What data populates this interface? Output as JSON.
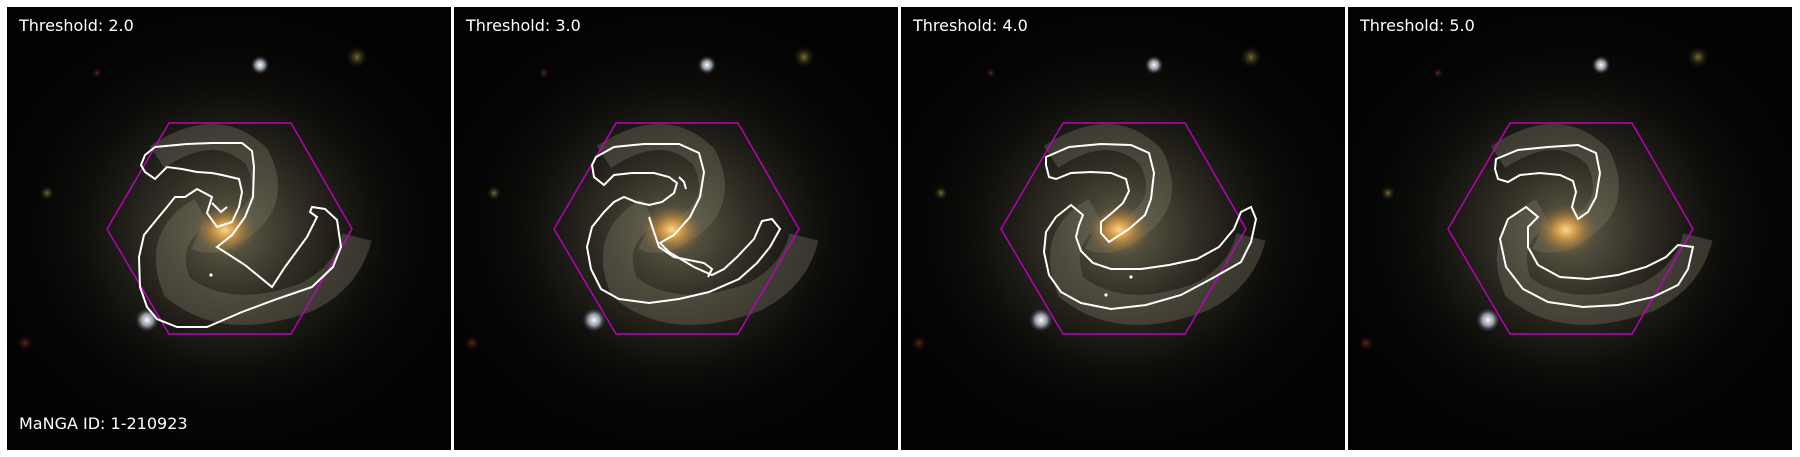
{
  "panels": [
    {
      "threshold_label": "Threshold: 2.0"
    },
    {
      "threshold_label": "Threshold: 3.0"
    },
    {
      "threshold_label": "Threshold: 4.0"
    },
    {
      "threshold_label": "Threshold: 5.0"
    }
  ],
  "manga_id_label": "MaNGA ID: 1-210923",
  "colors": {
    "hexagon": "#c000c0",
    "contour": "#ffffff",
    "background": "#030303",
    "core": "#e8a640"
  }
}
